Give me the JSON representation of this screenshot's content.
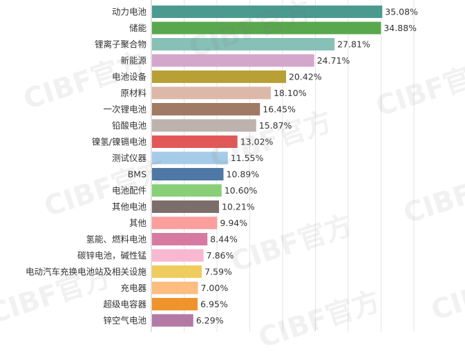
{
  "chart_data": {
    "type": "bar",
    "orientation": "horizontal",
    "categories": [
      "动力电池",
      "储能",
      "锂离子聚合物",
      "新能源",
      "电池设备",
      "原材料",
      "一次锂电池",
      "铅酸电池",
      "镍氢/镍镉电池",
      "测试仪器",
      "BMS",
      "电池配件",
      "其他电池",
      "其他",
      "氢能、燃料电池",
      "碳锌电池，碱性锰",
      "电动汽车充换电池站及相关设施",
      "充电器",
      "超级电容器",
      "锌空气电池"
    ],
    "values": [
      35.08,
      34.88,
      27.81,
      24.71,
      20.42,
      18.1,
      16.45,
      15.87,
      13.02,
      11.55,
      10.89,
      10.6,
      10.21,
      9.94,
      8.44,
      7.86,
      7.59,
      7.0,
      6.95,
      6.29
    ],
    "value_labels": [
      "35.08%",
      "34.88%",
      "27.81%",
      "24.71%",
      "20.42%",
      "18.10%",
      "16.45%",
      "15.87%",
      "13.02%",
      "11.55%",
      "10.89%",
      "10.60%",
      "10.21%",
      "9.94%",
      "8.44%",
      "7.86%",
      "7.59%",
      "7.00%",
      "6.95%",
      "6.29%"
    ],
    "colors": [
      "#4a9a90",
      "#5aa84e",
      "#86c0b7",
      "#d4a6cc",
      "#b8a034",
      "#dcb8a8",
      "#a07a64",
      "#bdb2ae",
      "#e25858",
      "#a6cbe8",
      "#4e78a6",
      "#88cf78",
      "#7b6e6b",
      "#fb9e9e",
      "#d77aa2",
      "#f8b8d2",
      "#f0cc5e",
      "#fbbd80",
      "#f0932c",
      "#b27aa4"
    ],
    "xlim": [
      0,
      40
    ],
    "grid": true,
    "xlabel": "",
    "ylabel": "",
    "title": ""
  },
  "watermark": {
    "text": "CIBF官方"
  }
}
